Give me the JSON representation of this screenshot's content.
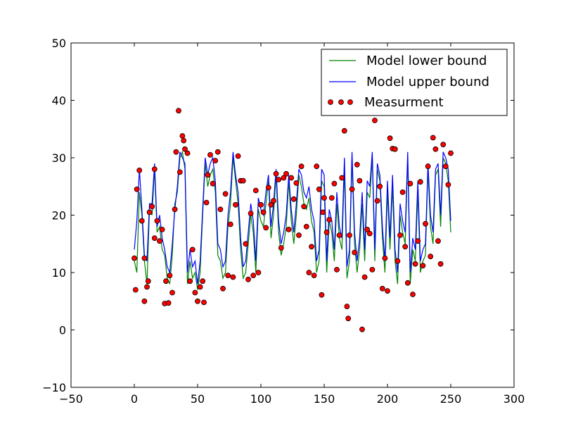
{
  "chart_data": {
    "type": "line",
    "xlim": [
      -50,
      300
    ],
    "ylim": [
      -10,
      50
    ],
    "xticks": [
      -50,
      0,
      50,
      100,
      150,
      200,
      250,
      300
    ],
    "yticks": [
      -10,
      0,
      10,
      20,
      30,
      40,
      50
    ],
    "xtick_labels": [
      "−50",
      "0",
      "50",
      "100",
      "150",
      "200",
      "250",
      "300"
    ],
    "ytick_labels": [
      "−10",
      "0",
      "10",
      "20",
      "30",
      "40",
      "50"
    ],
    "grid": false,
    "legend": {
      "placement": "top-right",
      "entries": [
        "Model lower bound",
        "Model upper bound",
        "Measurment"
      ]
    },
    "series": [
      {
        "name": "Model lower bound",
        "style": "line",
        "color": "#008000",
        "x": [
          0,
          2,
          4,
          6,
          8,
          10,
          12,
          14,
          16,
          18,
          20,
          22,
          24,
          26,
          28,
          30,
          32,
          34,
          36,
          38,
          40,
          42,
          44,
          46,
          48,
          50,
          52,
          54,
          56,
          58,
          60,
          62,
          64,
          66,
          68,
          70,
          72,
          74,
          76,
          78,
          80,
          82,
          84,
          86,
          88,
          90,
          92,
          94,
          96,
          98,
          100,
          102,
          104,
          106,
          108,
          110,
          112,
          114,
          116,
          118,
          120,
          122,
          124,
          126,
          128,
          130,
          132,
          134,
          136,
          138,
          140,
          142,
          144,
          146,
          148,
          150,
          152,
          154,
          156,
          158,
          160,
          162,
          164,
          166,
          168,
          170,
          172,
          174,
          176,
          178,
          180,
          182,
          184,
          186,
          188,
          190,
          192,
          194,
          196,
          198,
          200,
          202,
          204,
          206,
          208,
          210,
          212,
          214,
          216,
          218,
          220,
          222,
          224,
          226,
          228,
          230,
          232,
          234,
          236,
          238,
          240,
          242,
          244,
          246,
          248,
          250
        ],
        "values": [
          12,
          10,
          24,
          20,
          12,
          8,
          21,
          20,
          28,
          17,
          18,
          14,
          13,
          9,
          8,
          13,
          22,
          24,
          30,
          31,
          28,
          8,
          12,
          9,
          10,
          7,
          10,
          20,
          29,
          25,
          27,
          28,
          24,
          13,
          12,
          9,
          10,
          18,
          22,
          30,
          26,
          22,
          14,
          9,
          10,
          15,
          20,
          17,
          10,
          21,
          19,
          18,
          22,
          26,
          16,
          20,
          27,
          17,
          13,
          15,
          18,
          26,
          19,
          15,
          20,
          27,
          25,
          22,
          21,
          23,
          19,
          17,
          10,
          12,
          26,
          25,
          10,
          19,
          17,
          12,
          22,
          16,
          14,
          28,
          9,
          12,
          30,
          15,
          10,
          14,
          22,
          12,
          24,
          23,
          30,
          12,
          28,
          26,
          16,
          10,
          24,
          14,
          25,
          12,
          8,
          20,
          17,
          15,
          30,
          8,
          14,
          12,
          24,
          10,
          12,
          13,
          28,
          18,
          15,
          27,
          28,
          18,
          30,
          29,
          26,
          17
        ]
      },
      {
        "name": "Model upper bound",
        "style": "line",
        "color": "#0000ff",
        "x": [
          0,
          2,
          4,
          6,
          8,
          10,
          12,
          14,
          16,
          18,
          20,
          22,
          24,
          26,
          28,
          30,
          32,
          34,
          36,
          38,
          40,
          42,
          44,
          46,
          48,
          50,
          52,
          54,
          56,
          58,
          60,
          62,
          64,
          66,
          68,
          70,
          72,
          74,
          76,
          78,
          80,
          82,
          84,
          86,
          88,
          90,
          92,
          94,
          96,
          98,
          100,
          102,
          104,
          106,
          108,
          110,
          112,
          114,
          116,
          118,
          120,
          122,
          124,
          126,
          128,
          130,
          132,
          134,
          136,
          138,
          140,
          142,
          144,
          146,
          148,
          150,
          152,
          154,
          156,
          158,
          160,
          162,
          164,
          166,
          168,
          170,
          172,
          174,
          176,
          178,
          180,
          182,
          184,
          186,
          188,
          190,
          192,
          194,
          196,
          198,
          200,
          202,
          204,
          206,
          208,
          210,
          212,
          214,
          216,
          218,
          220,
          222,
          224,
          226,
          228,
          230,
          232,
          234,
          236,
          238,
          240,
          242,
          244,
          246,
          248,
          250
        ],
        "values": [
          14,
          19,
          28,
          21,
          13,
          12,
          22,
          22,
          29,
          18,
          20,
          16,
          14,
          11,
          10,
          15,
          21,
          25,
          31,
          30,
          29,
          10,
          14,
          11,
          12,
          8,
          12,
          21,
          30,
          27,
          29,
          30,
          26,
          15,
          14,
          11,
          12,
          20,
          24,
          31,
          27,
          24,
          16,
          11,
          12,
          17,
          22,
          19,
          12,
          23,
          21,
          20,
          24,
          27,
          18,
          22,
          28,
          19,
          15,
          17,
          20,
          27,
          21,
          17,
          22,
          28,
          27,
          24,
          23,
          25,
          21,
          19,
          12,
          14,
          28,
          27,
          12,
          21,
          19,
          14,
          24,
          18,
          16,
          30,
          11,
          14,
          31,
          17,
          12,
          16,
          24,
          14,
          26,
          25,
          31,
          14,
          29,
          27,
          18,
          12,
          26,
          16,
          27,
          14,
          10,
          22,
          19,
          17,
          31,
          10,
          16,
          14,
          26,
          12,
          14,
          15,
          29,
          20,
          17,
          28,
          29,
          20,
          31,
          30,
          28,
          19
        ]
      },
      {
        "name": "Measurment",
        "style": "scatter",
        "color": "#ff0000",
        "x": [
          0,
          1,
          2,
          4,
          6,
          8,
          8,
          10,
          11,
          12,
          14,
          16,
          16,
          18,
          20,
          22,
          24,
          25,
          27,
          28,
          30,
          32,
          33,
          35,
          36,
          38,
          39,
          40,
          42,
          44,
          46,
          48,
          50,
          52,
          54,
          55,
          57,
          58,
          60,
          62,
          64,
          66,
          68,
          70,
          72,
          74,
          76,
          78,
          80,
          82,
          84,
          86,
          88,
          90,
          92,
          94,
          96,
          98,
          100,
          102,
          104,
          106,
          108,
          110,
          112,
          114,
          116,
          118,
          120,
          122,
          124,
          126,
          128,
          130,
          132,
          134,
          136,
          138,
          140,
          142,
          144,
          146,
          148,
          149,
          150,
          152,
          154,
          156,
          158,
          160,
          162,
          164,
          166,
          168,
          169,
          170,
          172,
          174,
          176,
          178,
          180,
          182,
          184,
          186,
          188,
          190,
          192,
          194,
          196,
          198,
          200,
          202,
          204,
          206,
          208,
          210,
          212,
          214,
          216,
          218,
          220,
          222,
          224,
          226,
          228,
          230,
          232,
          234,
          236,
          238,
          240,
          242,
          244,
          246,
          248,
          250
        ],
        "values": [
          12.5,
          7,
          24.5,
          27.8,
          19,
          5,
          12.5,
          7.5,
          8.5,
          20.5,
          21.5,
          28,
          16,
          19,
          15.5,
          17.5,
          4.6,
          8.5,
          4.7,
          9.5,
          6.5,
          21,
          31,
          38.2,
          27.5,
          33.8,
          33,
          31.5,
          30.8,
          8.5,
          14,
          6.5,
          5,
          7.5,
          8.5,
          4.8,
          22.2,
          27,
          30.5,
          25.5,
          29.5,
          31,
          21,
          7.2,
          23.7,
          9.5,
          18.4,
          9.2,
          21.8,
          30.3,
          26,
          26,
          15,
          8.8,
          20.3,
          9.5,
          24.3,
          10,
          21.8,
          20.5,
          17.8,
          24.8,
          21.8,
          22.5,
          27.2,
          26.2,
          14.3,
          26.5,
          27.2,
          17.5,
          26.5,
          22.8,
          25.6,
          16.5,
          28.5,
          21.5,
          18,
          10,
          14.5,
          9.5,
          28.5,
          24.5,
          6.1,
          20.5,
          23,
          17,
          19.2,
          23,
          25.5,
          10.5,
          16.5,
          26.5,
          34.7,
          4.1,
          2,
          16.5,
          24.5,
          13.5,
          28.8,
          26,
          0.1,
          9.2,
          17.5,
          16.8,
          10.5,
          36.5,
          22.5,
          25,
          7.2,
          12.5,
          6.8,
          33.4,
          31.6,
          31.5,
          12,
          16.5,
          24,
          14.5,
          8.2,
          25.5,
          6.2,
          11.5,
          15.5,
          25.8,
          11.2,
          18.5,
          28.5,
          12.8,
          33.5,
          31.5,
          15.5,
          11.5,
          32.3,
          28.5,
          25.3,
          30.8
        ]
      }
    ]
  }
}
